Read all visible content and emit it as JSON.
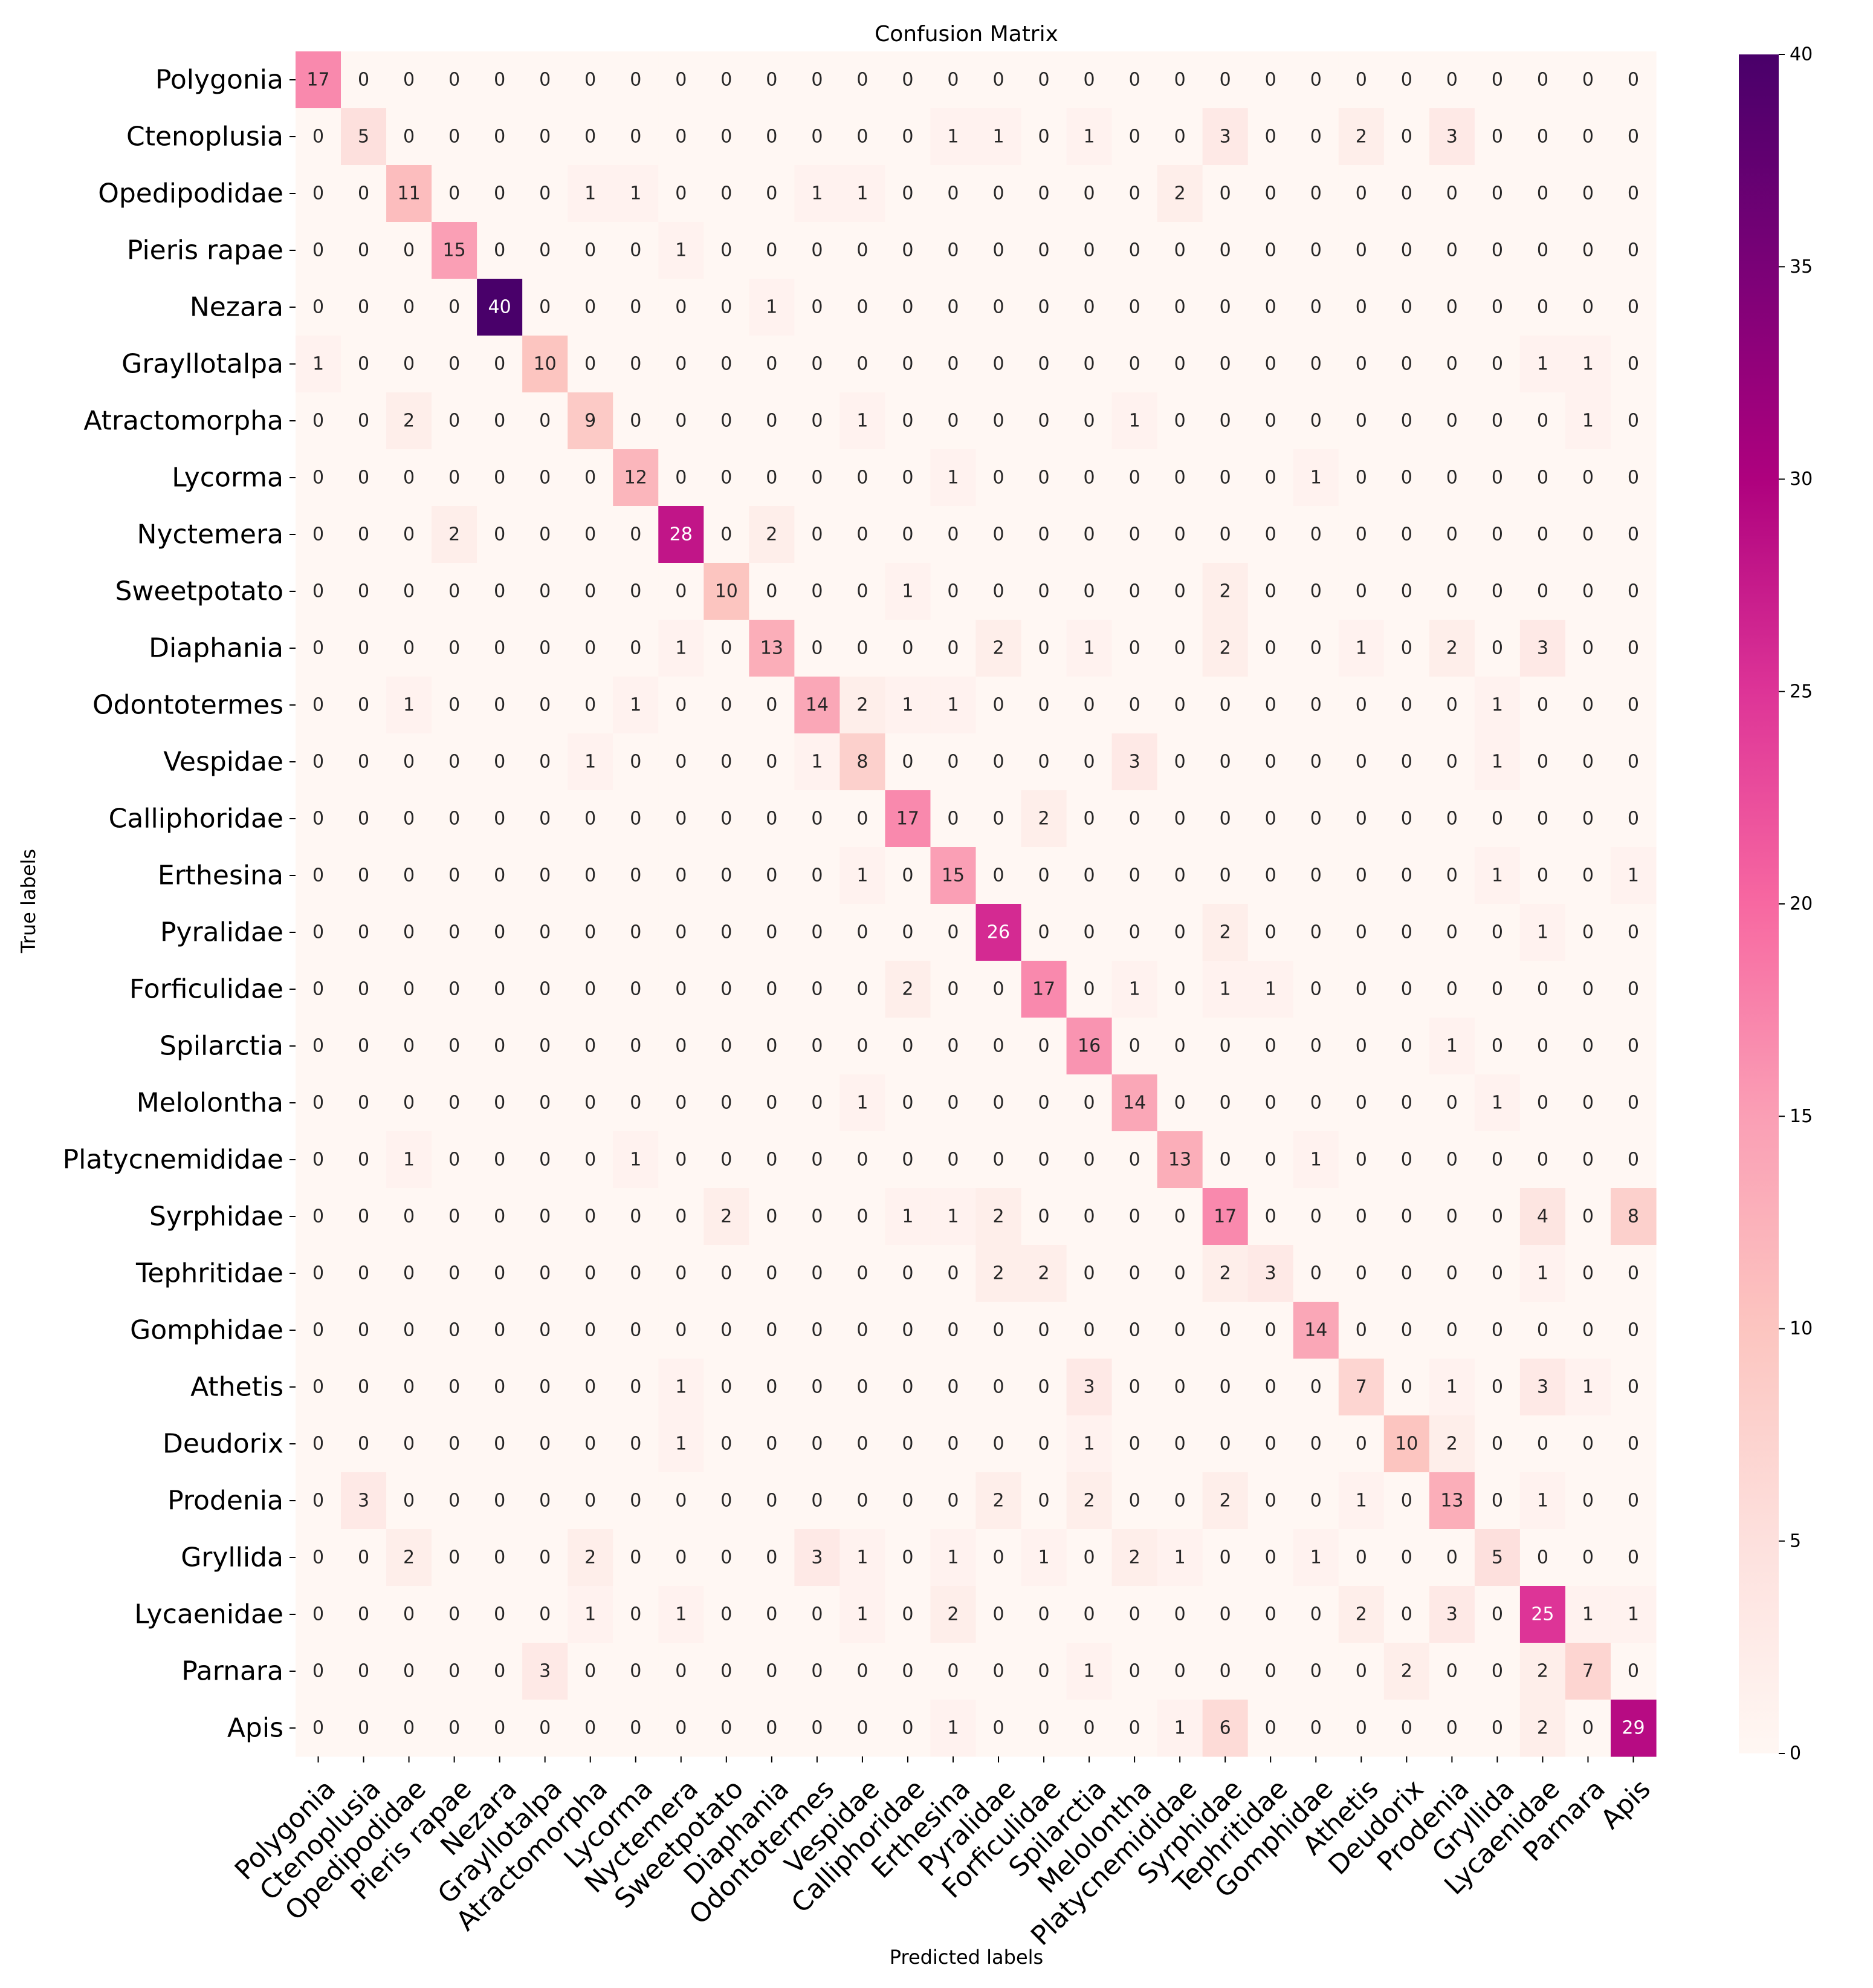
{
  "chart_data": {
    "type": "heatmap",
    "title": "Confusion Matrix",
    "xlabel": "Predicted labels",
    "ylabel": "True labels",
    "labels": [
      "Polygonia",
      "Ctenoplusia",
      "Opedipodidae",
      "Pieris rapae",
      "Nezara",
      "Grayllotalpa",
      "Atractomorpha",
      "Lycorma",
      "Nyctemera",
      "Sweetpotato",
      "Diaphania",
      "Odontotermes",
      "Vespidae",
      "Calliphoridae",
      "Erthesina",
      "Pyralidae",
      "Forficulidae",
      "Spilarctia",
      "Melolontha",
      "Platycnemididae",
      "Syrphidae",
      "Tephritidae",
      "Gomphidae",
      "Athetis",
      "Deudorix",
      "Prodenia",
      "Gryllida",
      "Lycaenidae",
      "Parnara",
      "Apis"
    ],
    "matrix": [
      [
        17,
        0,
        0,
        0,
        0,
        0,
        0,
        0,
        0,
        0,
        0,
        0,
        0,
        0,
        0,
        0,
        0,
        0,
        0,
        0,
        0,
        0,
        0,
        0,
        0,
        0,
        0,
        0,
        0,
        0
      ],
      [
        0,
        5,
        0,
        0,
        0,
        0,
        0,
        0,
        0,
        0,
        0,
        0,
        0,
        0,
        1,
        1,
        0,
        1,
        0,
        0,
        3,
        0,
        0,
        2,
        0,
        3,
        0,
        0,
        0,
        0
      ],
      [
        0,
        0,
        11,
        0,
        0,
        0,
        1,
        1,
        0,
        0,
        0,
        1,
        1,
        0,
        0,
        0,
        0,
        0,
        0,
        2,
        0,
        0,
        0,
        0,
        0,
        0,
        0,
        0,
        0,
        0
      ],
      [
        0,
        0,
        0,
        15,
        0,
        0,
        0,
        0,
        1,
        0,
        0,
        0,
        0,
        0,
        0,
        0,
        0,
        0,
        0,
        0,
        0,
        0,
        0,
        0,
        0,
        0,
        0,
        0,
        0,
        0
      ],
      [
        0,
        0,
        0,
        0,
        40,
        0,
        0,
        0,
        0,
        0,
        1,
        0,
        0,
        0,
        0,
        0,
        0,
        0,
        0,
        0,
        0,
        0,
        0,
        0,
        0,
        0,
        0,
        0,
        0,
        0
      ],
      [
        1,
        0,
        0,
        0,
        0,
        10,
        0,
        0,
        0,
        0,
        0,
        0,
        0,
        0,
        0,
        0,
        0,
        0,
        0,
        0,
        0,
        0,
        0,
        0,
        0,
        0,
        0,
        1,
        1,
        0
      ],
      [
        0,
        0,
        2,
        0,
        0,
        0,
        9,
        0,
        0,
        0,
        0,
        0,
        1,
        0,
        0,
        0,
        0,
        0,
        1,
        0,
        0,
        0,
        0,
        0,
        0,
        0,
        0,
        0,
        1,
        0
      ],
      [
        0,
        0,
        0,
        0,
        0,
        0,
        0,
        12,
        0,
        0,
        0,
        0,
        0,
        0,
        1,
        0,
        0,
        0,
        0,
        0,
        0,
        0,
        1,
        0,
        0,
        0,
        0,
        0,
        0,
        0
      ],
      [
        0,
        0,
        0,
        2,
        0,
        0,
        0,
        0,
        28,
        0,
        2,
        0,
        0,
        0,
        0,
        0,
        0,
        0,
        0,
        0,
        0,
        0,
        0,
        0,
        0,
        0,
        0,
        0,
        0,
        0
      ],
      [
        0,
        0,
        0,
        0,
        0,
        0,
        0,
        0,
        0,
        10,
        0,
        0,
        0,
        1,
        0,
        0,
        0,
        0,
        0,
        0,
        2,
        0,
        0,
        0,
        0,
        0,
        0,
        0,
        0,
        0
      ],
      [
        0,
        0,
        0,
        0,
        0,
        0,
        0,
        0,
        1,
        0,
        13,
        0,
        0,
        0,
        0,
        2,
        0,
        1,
        0,
        0,
        2,
        0,
        0,
        1,
        0,
        2,
        0,
        3,
        0,
        0
      ],
      [
        0,
        0,
        1,
        0,
        0,
        0,
        0,
        1,
        0,
        0,
        0,
        14,
        2,
        1,
        1,
        0,
        0,
        0,
        0,
        0,
        0,
        0,
        0,
        0,
        0,
        0,
        1,
        0,
        0,
        0
      ],
      [
        0,
        0,
        0,
        0,
        0,
        0,
        1,
        0,
        0,
        0,
        0,
        1,
        8,
        0,
        0,
        0,
        0,
        0,
        3,
        0,
        0,
        0,
        0,
        0,
        0,
        0,
        1,
        0,
        0,
        0
      ],
      [
        0,
        0,
        0,
        0,
        0,
        0,
        0,
        0,
        0,
        0,
        0,
        0,
        0,
        17,
        0,
        0,
        2,
        0,
        0,
        0,
        0,
        0,
        0,
        0,
        0,
        0,
        0,
        0,
        0,
        0
      ],
      [
        0,
        0,
        0,
        0,
        0,
        0,
        0,
        0,
        0,
        0,
        0,
        0,
        1,
        0,
        15,
        0,
        0,
        0,
        0,
        0,
        0,
        0,
        0,
        0,
        0,
        0,
        1,
        0,
        0,
        1
      ],
      [
        0,
        0,
        0,
        0,
        0,
        0,
        0,
        0,
        0,
        0,
        0,
        0,
        0,
        0,
        0,
        26,
        0,
        0,
        0,
        0,
        2,
        0,
        0,
        0,
        0,
        0,
        0,
        1,
        0,
        0
      ],
      [
        0,
        0,
        0,
        0,
        0,
        0,
        0,
        0,
        0,
        0,
        0,
        0,
        0,
        2,
        0,
        0,
        17,
        0,
        1,
        0,
        1,
        1,
        0,
        0,
        0,
        0,
        0,
        0,
        0,
        0
      ],
      [
        0,
        0,
        0,
        0,
        0,
        0,
        0,
        0,
        0,
        0,
        0,
        0,
        0,
        0,
        0,
        0,
        0,
        16,
        0,
        0,
        0,
        0,
        0,
        0,
        0,
        1,
        0,
        0,
        0,
        0
      ],
      [
        0,
        0,
        0,
        0,
        0,
        0,
        0,
        0,
        0,
        0,
        0,
        0,
        1,
        0,
        0,
        0,
        0,
        0,
        14,
        0,
        0,
        0,
        0,
        0,
        0,
        0,
        1,
        0,
        0,
        0
      ],
      [
        0,
        0,
        1,
        0,
        0,
        0,
        0,
        1,
        0,
        0,
        0,
        0,
        0,
        0,
        0,
        0,
        0,
        0,
        0,
        13,
        0,
        0,
        1,
        0,
        0,
        0,
        0,
        0,
        0,
        0
      ],
      [
        0,
        0,
        0,
        0,
        0,
        0,
        0,
        0,
        0,
        2,
        0,
        0,
        0,
        1,
        1,
        2,
        0,
        0,
        0,
        0,
        17,
        0,
        0,
        0,
        0,
        0,
        0,
        4,
        0,
        8
      ],
      [
        0,
        0,
        0,
        0,
        0,
        0,
        0,
        0,
        0,
        0,
        0,
        0,
        0,
        0,
        0,
        2,
        2,
        0,
        0,
        0,
        2,
        3,
        0,
        0,
        0,
        0,
        0,
        1,
        0,
        0
      ],
      [
        0,
        0,
        0,
        0,
        0,
        0,
        0,
        0,
        0,
        0,
        0,
        0,
        0,
        0,
        0,
        0,
        0,
        0,
        0,
        0,
        0,
        0,
        14,
        0,
        0,
        0,
        0,
        0,
        0,
        0
      ],
      [
        0,
        0,
        0,
        0,
        0,
        0,
        0,
        0,
        1,
        0,
        0,
        0,
        0,
        0,
        0,
        0,
        0,
        3,
        0,
        0,
        0,
        0,
        0,
        7,
        0,
        1,
        0,
        3,
        1,
        0
      ],
      [
        0,
        0,
        0,
        0,
        0,
        0,
        0,
        0,
        1,
        0,
        0,
        0,
        0,
        0,
        0,
        0,
        0,
        1,
        0,
        0,
        0,
        0,
        0,
        0,
        10,
        2,
        0,
        0,
        0,
        0
      ],
      [
        0,
        3,
        0,
        0,
        0,
        0,
        0,
        0,
        0,
        0,
        0,
        0,
        0,
        0,
        0,
        2,
        0,
        2,
        0,
        0,
        2,
        0,
        0,
        1,
        0,
        13,
        0,
        1,
        0,
        0
      ],
      [
        0,
        0,
        2,
        0,
        0,
        0,
        2,
        0,
        0,
        0,
        0,
        3,
        1,
        0,
        1,
        0,
        1,
        0,
        2,
        1,
        0,
        0,
        1,
        0,
        0,
        0,
        5,
        0,
        0,
        0
      ],
      [
        0,
        0,
        0,
        0,
        0,
        0,
        1,
        0,
        1,
        0,
        0,
        0,
        1,
        0,
        2,
        0,
        0,
        0,
        0,
        0,
        0,
        0,
        0,
        2,
        0,
        3,
        0,
        25,
        1,
        1
      ],
      [
        0,
        0,
        0,
        0,
        0,
        3,
        0,
        0,
        0,
        0,
        0,
        0,
        0,
        0,
        0,
        0,
        0,
        1,
        0,
        0,
        0,
        0,
        0,
        0,
        2,
        0,
        0,
        2,
        7,
        0
      ],
      [
        0,
        0,
        0,
        0,
        0,
        0,
        0,
        0,
        0,
        0,
        0,
        0,
        0,
        0,
        1,
        0,
        0,
        0,
        0,
        1,
        6,
        0,
        0,
        0,
        0,
        0,
        0,
        2,
        0,
        29
      ]
    ],
    "vmin": 0,
    "vmax": 40,
    "colorbar_ticks": [
      0,
      5,
      10,
      15,
      20,
      25,
      30,
      35,
      40
    ],
    "colormap": "RdPu",
    "colormap_stops": [
      "#fff7f3",
      "#fde0dd",
      "#fcc5c0",
      "#fa9fb5",
      "#f768a1",
      "#dd3497",
      "#ae017e",
      "#7a0177",
      "#49006a"
    ]
  }
}
